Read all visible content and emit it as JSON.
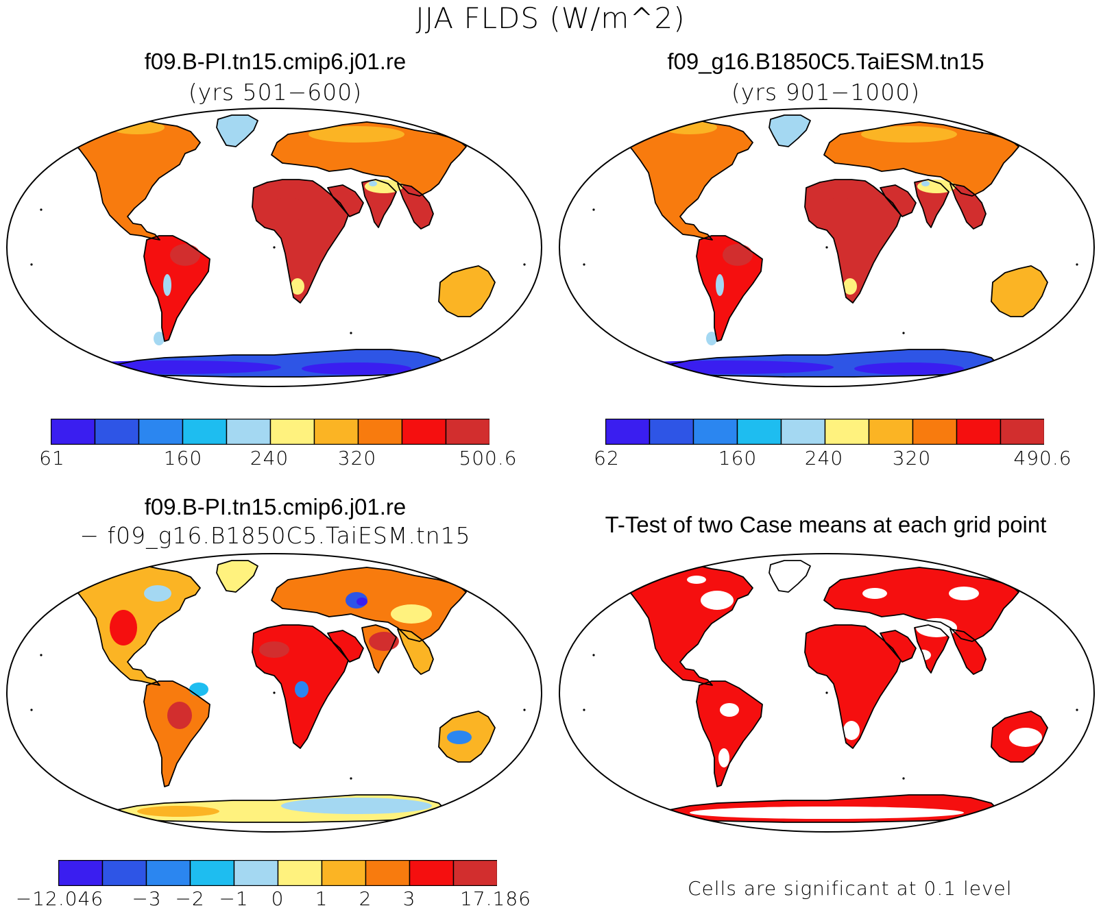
{
  "title": "JJA FLDS (W/m^2)",
  "palette": [
    "#3a1ef0",
    "#2e55e6",
    "#2b86f0",
    "#1ebdf0",
    "#a4d8f2",
    "#fff27e",
    "#fbb424",
    "#f87b0e",
    "#f50f0f",
    "#d22e2e"
  ],
  "sig_color": "#f50f0f",
  "panels": [
    {
      "title": "f09.B-PI.tn15.cmip6.j01.re",
      "subtitle": "(yrs 501−600)",
      "legend_labels": [
        "61",
        "160",
        "240",
        "320",
        "500.6"
      ]
    },
    {
      "title": "f09_g16.B1850C5.TaiESM.tn15",
      "subtitle": "(yrs 901−1000)",
      "legend_labels": [
        "62",
        "160",
        "240",
        "320",
        "490.6"
      ]
    },
    {
      "title": "f09.B-PI.tn15.cmip6.j01.re",
      "subtitle": "− f09_g16.B1850C5.TaiESM.tn15",
      "legend_labels": [
        "−12.046",
        "−3",
        "−2",
        "−1",
        "0",
        "1",
        "2",
        "3",
        "17.186"
      ]
    },
    {
      "title": "T-Test of two Case means at each grid point",
      "note": "Cells are significant at 0.1 level"
    }
  ]
}
